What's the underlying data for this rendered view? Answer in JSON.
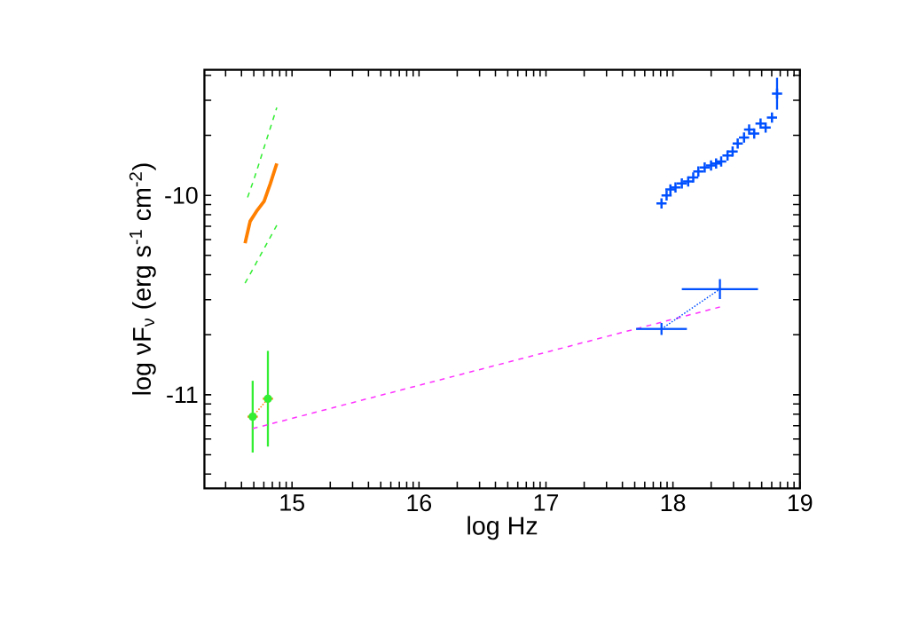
{
  "chart_data": {
    "type": "line",
    "xlabel": "log Hz",
    "ylabel": "log νF$_{ν}$ (erg s$^{-1}$ cm$^{-2}$)",
    "xlim": [
      14.31,
      19.0
    ],
    "ylim": [
      -11.47,
      -9.37
    ],
    "xticks": [
      {
        "value": 14.477,
        "label": null
      },
      {
        "value": 14.602,
        "label": null
      },
      {
        "value": 14.699,
        "label": null
      },
      {
        "value": 14.778,
        "label": null
      },
      {
        "value": 14.845,
        "label": null
      },
      {
        "value": 14.903,
        "label": null
      },
      {
        "value": 14.954,
        "label": null
      },
      15,
      {
        "value": 15.301,
        "label": null
      },
      {
        "value": 15.477,
        "label": null
      },
      {
        "value": 15.602,
        "label": null
      },
      {
        "value": 15.699,
        "label": null
      },
      {
        "value": 15.778,
        "label": null
      },
      {
        "value": 15.845,
        "label": null
      },
      {
        "value": 15.903,
        "label": null
      },
      {
        "value": 15.954,
        "label": null
      },
      16,
      {
        "value": 16.301,
        "label": null
      },
      {
        "value": 16.477,
        "label": null
      },
      {
        "value": 16.602,
        "label": null
      },
      {
        "value": 16.699,
        "label": null
      },
      {
        "value": 16.778,
        "label": null
      },
      {
        "value": 16.845,
        "label": null
      },
      {
        "value": 16.903,
        "label": null
      },
      {
        "value": 16.954,
        "label": null
      },
      17,
      {
        "value": 17.301,
        "label": null
      },
      {
        "value": 17.477,
        "label": null
      },
      {
        "value": 17.602,
        "label": null
      },
      {
        "value": 17.699,
        "label": null
      },
      {
        "value": 17.778,
        "label": null
      },
      {
        "value": 17.845,
        "label": null
      },
      {
        "value": 17.903,
        "label": null
      },
      {
        "value": 17.954,
        "label": null
      },
      18,
      {
        "value": 18.301,
        "label": null
      },
      {
        "value": 18.477,
        "label": null
      },
      {
        "value": 18.602,
        "label": null
      },
      {
        "value": 18.699,
        "label": null
      },
      {
        "value": 18.778,
        "label": null
      },
      {
        "value": 18.845,
        "label": null
      },
      {
        "value": 18.903,
        "label": null
      },
      {
        "value": 18.954,
        "label": null
      },
      19
    ],
    "yticks": [
      {
        "value": -11.398,
        "label": null
      },
      {
        "value": -11.301,
        "label": null
      },
      {
        "value": -11.222,
        "label": null
      },
      {
        "value": -11.155,
        "label": null
      },
      {
        "value": -11.097,
        "label": null
      },
      {
        "value": -11.046,
        "label": null
      },
      -11,
      {
        "value": -10.699,
        "label": null
      },
      {
        "value": -10.523,
        "label": null
      },
      {
        "value": -10.398,
        "label": null
      },
      {
        "value": -10.301,
        "label": null
      },
      {
        "value": -10.222,
        "label": null
      },
      {
        "value": -10.155,
        "label": null
      },
      {
        "value": -10.097,
        "label": null
      },
      {
        "value": -10.046,
        "label": null
      },
      -10,
      {
        "value": -9.699,
        "label": null
      },
      {
        "value": -9.523,
        "label": null
      },
      {
        "value": -9.398,
        "label": null
      }
    ],
    "series": [
      {
        "color": "#33ee33",
        "line_style": "dashed",
        "marker": "none",
        "x": [
          14.65,
          14.7,
          14.76,
          14.82,
          14.88
        ],
        "values": [
          -10.01,
          -9.92,
          -9.8,
          -9.68,
          -9.56
        ]
      },
      {
        "color": "#33ee33",
        "line_style": "dashed",
        "marker": "none",
        "x": [
          14.63,
          14.7,
          14.76,
          14.82,
          14.88
        ],
        "values": [
          -10.44,
          -10.36,
          -10.29,
          -10.22,
          -10.15
        ]
      },
      {
        "color": "#ff7f00",
        "line_style": "solid",
        "marker": "none",
        "x": [
          14.63,
          14.67,
          14.72,
          14.78,
          14.83,
          14.88
        ],
        "values": [
          -10.24,
          -10.13,
          -10.08,
          -10.03,
          -9.94,
          -9.84
        ]
      },
      {
        "type": "scatter",
        "color": "#33ee33",
        "marker": "none",
        "x": [
          14.69,
          14.81
        ],
        "values": [
          -11.11,
          -11.02
        ],
        "errors": [
          0.18,
          0.24
        ]
      },
      {
        "color": "#ff7f00",
        "line_style": "dotted",
        "marker": "none",
        "x": [
          14.69,
          14.81
        ],
        "values": [
          -11.11,
          -11.02
        ],
        "xerrors": [
          0.04,
          0.04
        ]
      },
      {
        "color": "#ff33ff",
        "line_style": "dashed",
        "marker": "none",
        "x": [
          14.69,
          18.37
        ],
        "values": [
          -11.17,
          -10.56
        ]
      },
      {
        "color": "#0050ff",
        "line_style": "dotted",
        "marker": "none",
        "x": [
          17.91,
          18.37
        ],
        "values": [
          -10.67,
          -10.47
        ],
        "errors": [
          0.03,
          0.05
        ],
        "xerrors": [
          0.2,
          0.3
        ]
      },
      {
        "type": "scatter",
        "color": "#0050ff",
        "marker": "cross",
        "x": [
          17.91,
          17.95,
          17.98,
          18.02,
          18.07,
          18.12,
          18.16,
          18.2,
          18.25,
          18.3,
          18.34,
          18.38,
          18.43,
          18.47,
          18.51,
          18.56,
          18.6,
          18.64,
          18.69,
          18.73,
          18.78,
          18.82
        ],
        "values": [
          -10.04,
          -10.0,
          -9.97,
          -9.96,
          -9.94,
          -9.93,
          -9.91,
          -9.88,
          -9.86,
          -9.85,
          -9.84,
          -9.83,
          -9.8,
          -9.78,
          -9.74,
          -9.71,
          -9.67,
          -9.69,
          -9.64,
          -9.66,
          -9.61,
          -9.49
        ],
        "errors": [
          null,
          null,
          null,
          null,
          null,
          null,
          null,
          null,
          null,
          null,
          null,
          null,
          null,
          null,
          null,
          null,
          null,
          null,
          null,
          null,
          null,
          0.08
        ]
      }
    ]
  }
}
